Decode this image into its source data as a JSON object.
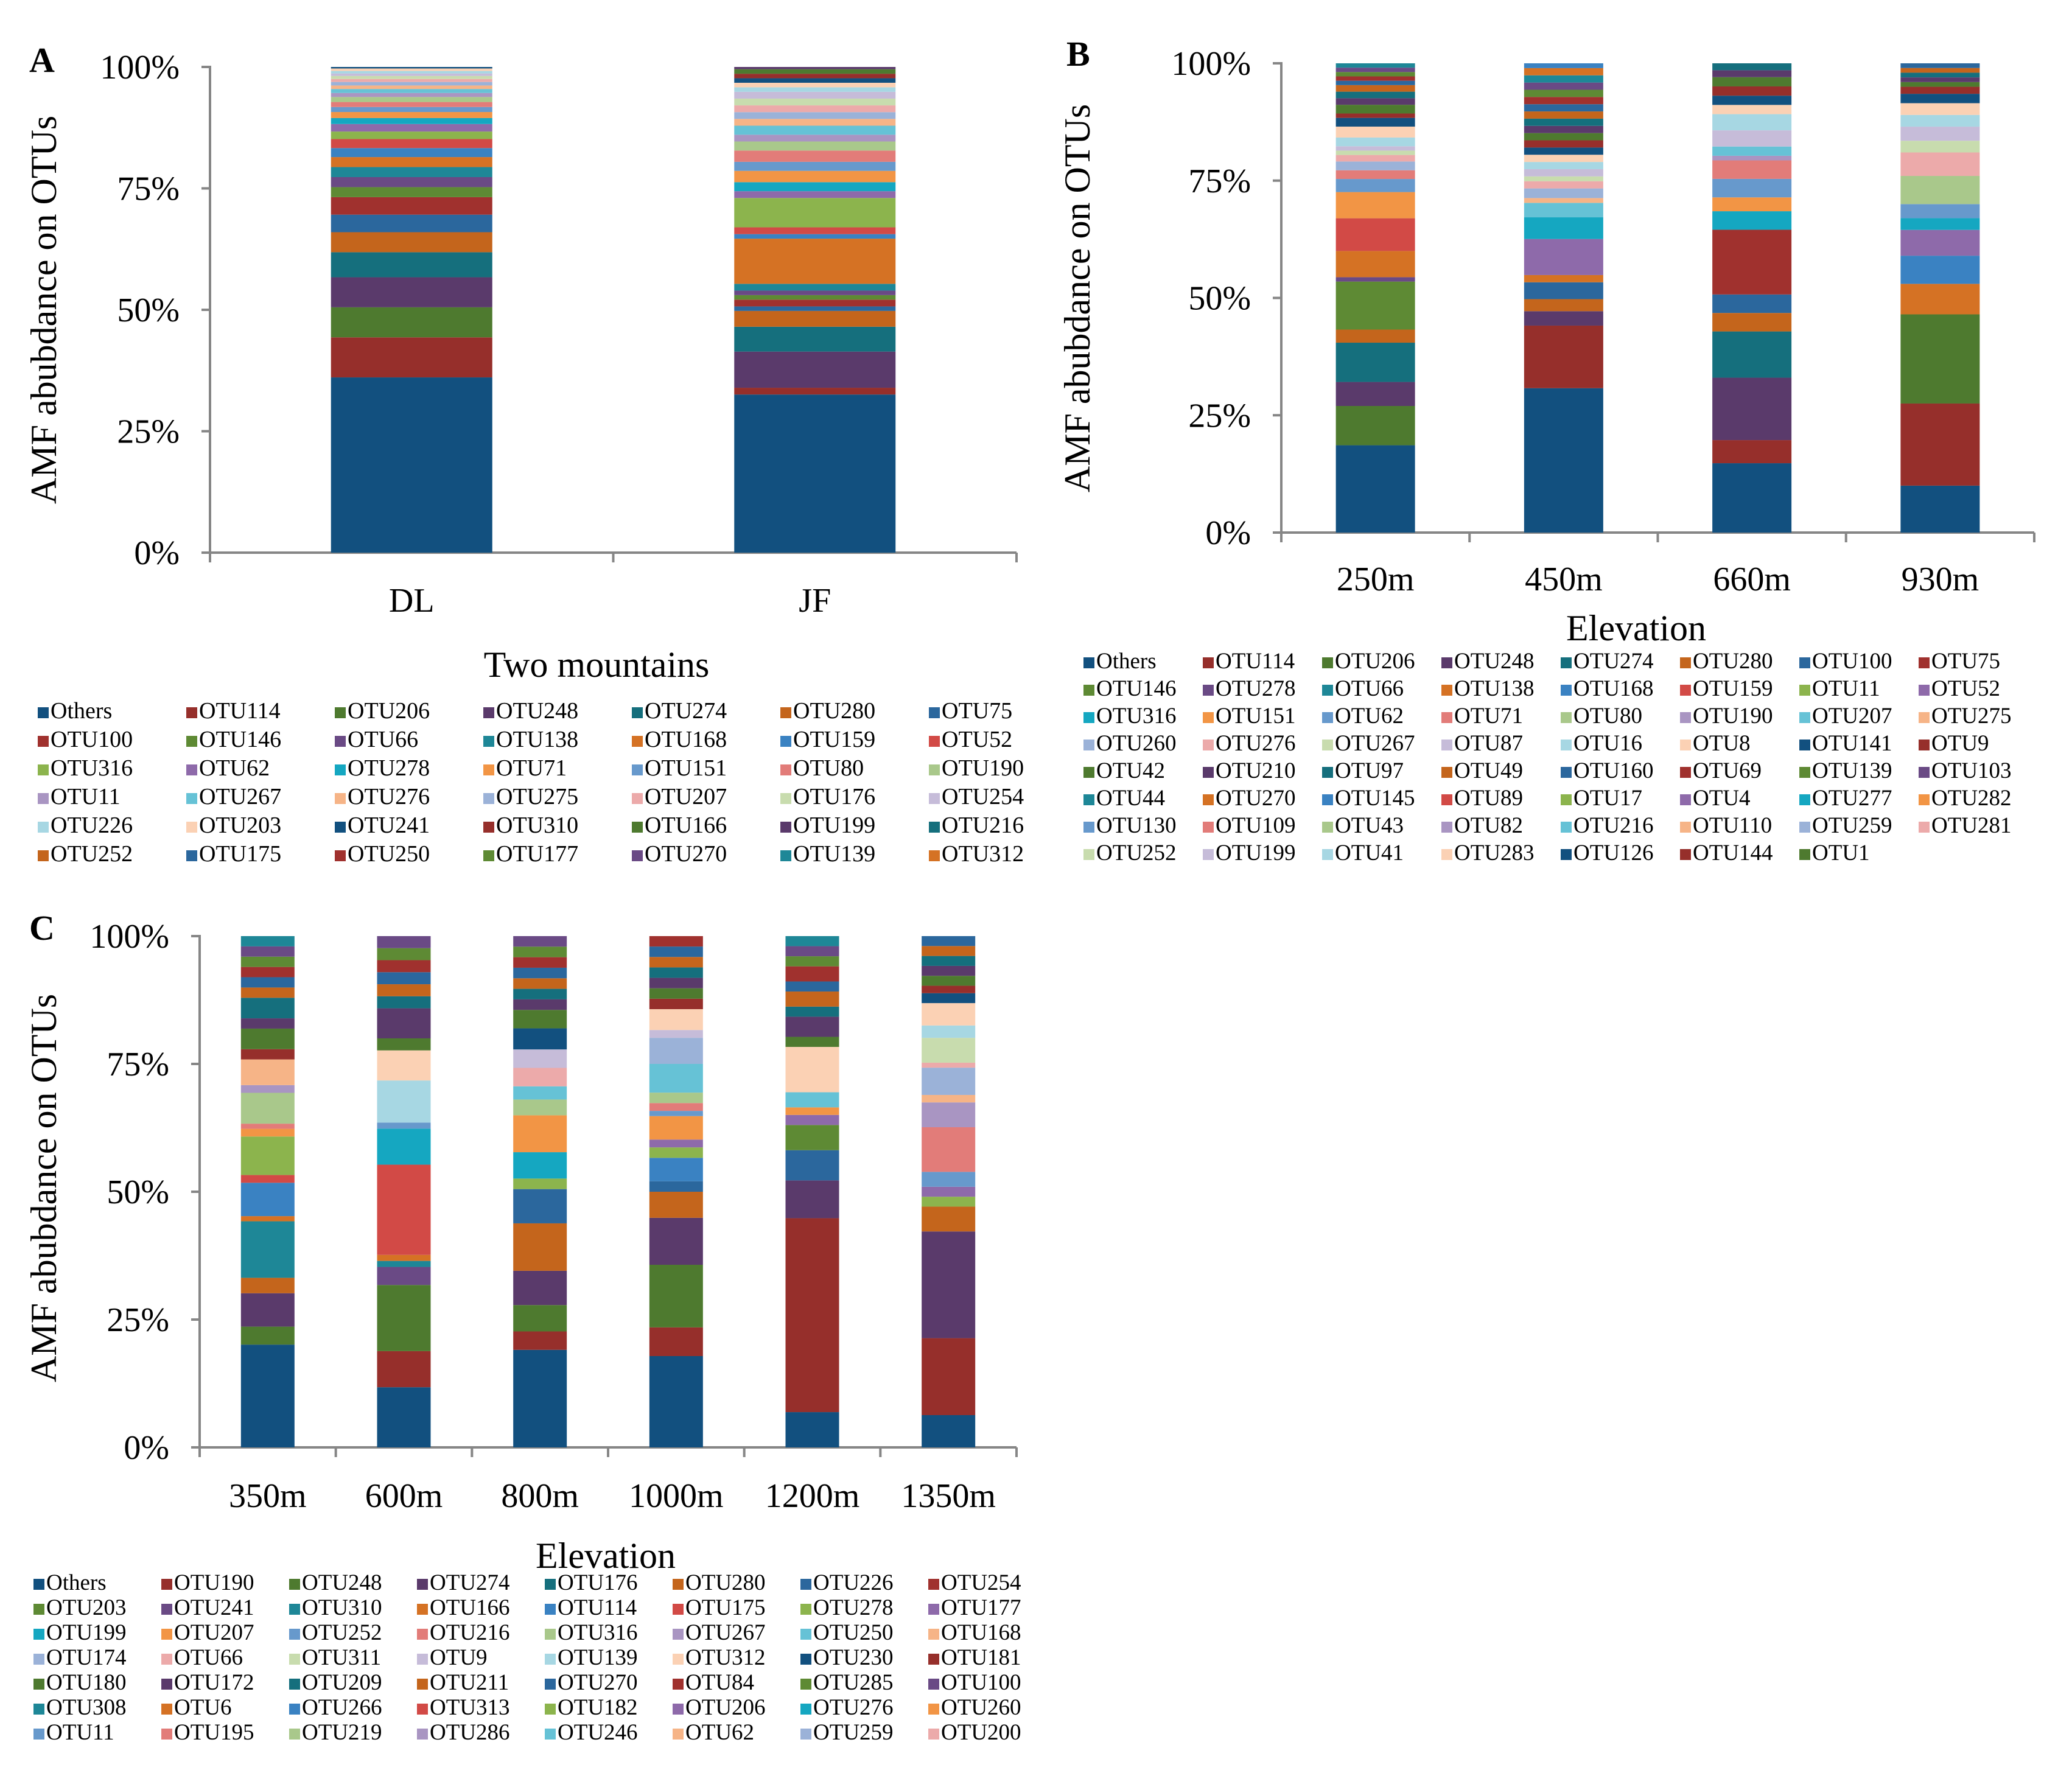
{
  "colors": {
    "palette": [
      "#12507f",
      "#962f2b",
      "#4e7a2f",
      "#5a3a6b",
      "#156f7d",
      "#c4651c",
      "#2b679d",
      "#a0312e",
      "#5e8a34",
      "#6a4a85",
      "#1e8797",
      "#d57224",
      "#3a82c2",
      "#d24a46",
      "#8cb44d",
      "#8e6aaa",
      "#15a7c1",
      "#f29545",
      "#6799cc",
      "#e27c79",
      "#a9c88b",
      "#a995c2",
      "#66c2d6",
      "#f6b487",
      "#9bb2d8",
      "#ecaaaa",
      "#c8dcae",
      "#c6bcd9",
      "#a7d7e3",
      "#fbd1b4"
    ]
  },
  "chart_data": [
    {
      "type": "bar",
      "stacked": "percent",
      "panel": "A",
      "title": "",
      "xlabel": "Two mountains",
      "ylabel": "AMF abubdance on OTUs",
      "ylim": [
        0,
        100
      ],
      "yticks": [
        "0%",
        "25%",
        "50%",
        "75%",
        "100%"
      ],
      "categories": [
        "DL",
        "JF"
      ],
      "legend_position": "bottom",
      "legend_columns": 7,
      "legend": [
        "Others",
        "OTU114",
        "OTU206",
        "OTU248",
        "OTU274",
        "OTU280",
        "OTU75",
        "OTU100",
        "OTU146",
        "OTU66",
        "OTU138",
        "OTU168",
        "OTU159",
        "OTU52",
        "OTU316",
        "OTU62",
        "OTU278",
        "OTU71",
        "OTU151",
        "OTU80",
        "OTU190",
        "OTU11",
        "OTU267",
        "OTU276",
        "OTU275",
        "OTU207",
        "OTU176",
        "OTU254",
        "OTU226",
        "OTU203",
        "OTU241",
        "OTU310",
        "OTU166",
        "OTU199",
        "OTU216",
        "OTU252",
        "OTU175",
        "OTU250",
        "OTU177",
        "OTU270",
        "OTU139",
        "OTU312"
      ],
      "segments": [
        [
          35,
          8,
          6,
          6,
          5,
          4,
          3.5,
          3.5,
          2,
          2,
          2,
          2,
          1.8,
          1.8,
          1.5,
          1.5,
          1.2,
          1.2,
          1,
          1,
          1,
          0.8,
          0.8,
          0.7,
          0.7,
          0.6,
          0.6,
          0.5,
          0.5,
          0.5,
          0.3
        ],
        [
          35,
          1.5,
          0,
          8,
          5.5,
          3.5,
          1,
          1.5,
          1,
          1,
          1.5,
          10,
          1,
          1.5,
          6.5,
          1.5,
          2,
          2.5,
          2,
          2.5,
          2,
          1.5,
          2,
          1.5,
          1.5,
          1.5,
          1.5,
          1.5,
          1,
          1,
          1,
          1,
          1,
          0.5
        ]
      ]
    },
    {
      "type": "bar",
      "stacked": "percent",
      "panel": "B",
      "title": "",
      "xlabel": "Elevation",
      "ylabel": "AMF abubdance on OTUs",
      "ylim": [
        0,
        100
      ],
      "yticks": [
        "0%",
        "25%",
        "50%",
        "75%",
        "100%"
      ],
      "categories": [
        "250m",
        "450m",
        "660m",
        "930m"
      ],
      "legend_position": "bottom",
      "legend_columns": 8,
      "legend": [
        "Others",
        "OTU114",
        "OTU206",
        "OTU248",
        "OTU274",
        "OTU280",
        "OTU100",
        "OTU75",
        "OTU146",
        "OTU278",
        "OTU66",
        "OTU138",
        "OTU168",
        "OTU159",
        "OTU11",
        "OTU52",
        "OTU316",
        "OTU151",
        "OTU62",
        "OTU71",
        "OTU80",
        "OTU190",
        "OTU207",
        "OTU275",
        "OTU260",
        "OTU276",
        "OTU267",
        "OTU87",
        "OTU16",
        "OTU8",
        "OTU141",
        "OTU9",
        "OTU42",
        "OTU210",
        "OTU97",
        "OTU49",
        "OTU160",
        "OTU69",
        "OTU139",
        "OTU103",
        "OTU44",
        "OTU270",
        "OTU145",
        "OTU89",
        "OTU17",
        "OTU4",
        "OTU277",
        "OTU282",
        "OTU130",
        "OTU109",
        "OTU43",
        "OTU82",
        "OTU216",
        "OTU110",
        "OTU259",
        "OTU281",
        "OTU252",
        "OTU199",
        "OTU41",
        "OTU283",
        "OTU126",
        "OTU144",
        "OTU1"
      ],
      "segments": [
        [
          20,
          0,
          9,
          5.5,
          9,
          3,
          0,
          0,
          11,
          1,
          0,
          6,
          0,
          7.5,
          0,
          0,
          0,
          6,
          3,
          2,
          0,
          0,
          0,
          0,
          2,
          1.5,
          1,
          1,
          2,
          2.5,
          2,
          1,
          2,
          1.5,
          1.5,
          1.5,
          1,
          1,
          1,
          1,
          1
        ],
        [
          30,
          13,
          0,
          3,
          0,
          2.5,
          3.5,
          0,
          0,
          0,
          0,
          1.5,
          0,
          0,
          0,
          7.5,
          4.5,
          0,
          0,
          0,
          0,
          0,
          3,
          1,
          2,
          1.5,
          1,
          1.5,
          1.5,
          1.5,
          1.5,
          1.5,
          1.5,
          1.5,
          1.5,
          1.5,
          1.5,
          1.5,
          1.5,
          1.5,
          1.5,
          1.5,
          1
        ],
        [
          15,
          5,
          0,
          13.5,
          10,
          4,
          4,
          14,
          0,
          0,
          0,
          0,
          0,
          0,
          0,
          0,
          4,
          3,
          4,
          4,
          0,
          1,
          2,
          0,
          0,
          0,
          0,
          3.5,
          3.5,
          2,
          2,
          2,
          2,
          1.5,
          1.5
        ],
        [
          10,
          17.5,
          19,
          0,
          0,
          0,
          0,
          0,
          0,
          0,
          0,
          6.5,
          6,
          0,
          0,
          5.5,
          2.5,
          0,
          3,
          0,
          6,
          0,
          0,
          0,
          0,
          5,
          2.5,
          3,
          2.5,
          2.5,
          2,
          1.5,
          1,
          1,
          1,
          1,
          1
        ]
      ]
    },
    {
      "type": "bar",
      "stacked": "percent",
      "panel": "C",
      "title": "",
      "xlabel": "Elevation",
      "ylabel": "AMF abubdance on OTUs",
      "ylim": [
        0,
        100
      ],
      "yticks": [
        "0%",
        "25%",
        "50%",
        "75%",
        "100%"
      ],
      "categories": [
        "350m",
        "600m",
        "800m",
        "1000m",
        "1200m",
        "1350m"
      ],
      "legend_position": "bottom",
      "legend_columns": 8,
      "legend": [
        "Others",
        "OTU190",
        "OTU248",
        "OTU274",
        "OTU176",
        "OTU280",
        "OTU226",
        "OTU254",
        "OTU203",
        "OTU241",
        "OTU310",
        "OTU166",
        "OTU114",
        "OTU175",
        "OTU278",
        "OTU177",
        "OTU199",
        "OTU207",
        "OTU252",
        "OTU216",
        "OTU316",
        "OTU267",
        "OTU250",
        "OTU168",
        "OTU174",
        "OTU66",
        "OTU311",
        "OTU9",
        "OTU139",
        "OTU312",
        "OTU230",
        "OTU181",
        "OTU180",
        "OTU172",
        "OTU209",
        "OTU211",
        "OTU270",
        "OTU84",
        "OTU285",
        "OTU100",
        "OTU308",
        "OTU6",
        "OTU266",
        "OTU313",
        "OTU182",
        "OTU206",
        "OTU276",
        "OTU260",
        "OTU11",
        "OTU195",
        "OTU219",
        "OTU286",
        "OTU246",
        "OTU62",
        "OTU259",
        "OTU200"
      ],
      "segments": [
        [
          20,
          0,
          3.5,
          6.5,
          0,
          3,
          0,
          0,
          0,
          0,
          11,
          1,
          6.5,
          1.5,
          7.5,
          0,
          0,
          1.5,
          0,
          1,
          6,
          1.5,
          0,
          5,
          0,
          0,
          0,
          0,
          0,
          0,
          0,
          2,
          4,
          2,
          4,
          2,
          2,
          2,
          2,
          2,
          2
        ],
        [
          10,
          6,
          11,
          0,
          0,
          0,
          0,
          0,
          0,
          3,
          1,
          1,
          0,
          15,
          0,
          0,
          6,
          0,
          1,
          0,
          0,
          0,
          0,
          0,
          0,
          0,
          0,
          0,
          7,
          5,
          0,
          0,
          2,
          5,
          2,
          2,
          2,
          2,
          2,
          2
        ],
        [
          18.5,
          3.5,
          5,
          6.5,
          0,
          9,
          6.5,
          0,
          0,
          0,
          0,
          0,
          0,
          0,
          2,
          0,
          5,
          7,
          0,
          0,
          3,
          0,
          2.5,
          0,
          0,
          3.5,
          0,
          3.5,
          0,
          0,
          4,
          0,
          3.5,
          2,
          2,
          2,
          2,
          2,
          2,
          2
        ],
        [
          17.5,
          5.5,
          12,
          9,
          0,
          5,
          2,
          0,
          0,
          0,
          0,
          0,
          4.5,
          0,
          2,
          1.5,
          0,
          4.5,
          1,
          1.5,
          2,
          0,
          5.5,
          0,
          5,
          0,
          0,
          1.5,
          0,
          4,
          0,
          2,
          2,
          2,
          2,
          2,
          2,
          2
        ],
        [
          7,
          38.5,
          0,
          7.5,
          0,
          0,
          6,
          0,
          5,
          0,
          0,
          0,
          0,
          0,
          0,
          2,
          0,
          1.5,
          0,
          0,
          0,
          0,
          3,
          0,
          0,
          0,
          0,
          0,
          0,
          9,
          0,
          0,
          2,
          4,
          2,
          3,
          2,
          3,
          2,
          2,
          2
        ],
        [
          6.5,
          15.5,
          0,
          21.5,
          0,
          5,
          0,
          0,
          0,
          0,
          0,
          0,
          0,
          0,
          2,
          2,
          0,
          0,
          3,
          9,
          0,
          5,
          0,
          1.5,
          5.5,
          1,
          5,
          0,
          2.5,
          4.5,
          2,
          1.5,
          2,
          2,
          2,
          2,
          2
        ]
      ]
    }
  ],
  "panels": {
    "A": {
      "letter": "A"
    },
    "B": {
      "letter": "B"
    },
    "C": {
      "letter": "C"
    }
  }
}
